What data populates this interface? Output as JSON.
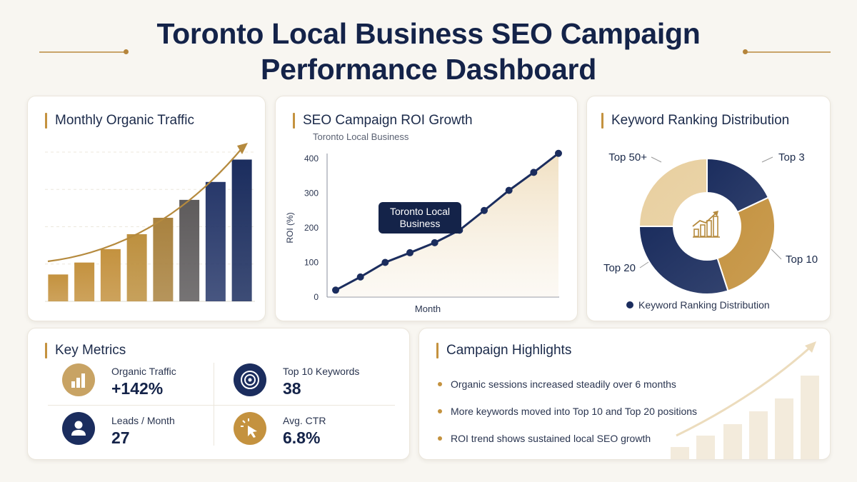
{
  "page": {
    "title_line1": "Toronto Local Business SEO Campaign",
    "title_line2": "Performance Dashboard"
  },
  "colors": {
    "navy": "#1b2d5e",
    "gold": "#c4923f",
    "gold_light": "#e8cf9f",
    "background": "#f8f6f1"
  },
  "traffic_card": {
    "title": "Monthly Organic Traffic"
  },
  "roi_card": {
    "title": "SEO Campaign ROI Growth",
    "subtitle": "Toronto Local Business",
    "callout": "Toronto Local Business"
  },
  "keyword_card": {
    "title": "Keyword Ranking Distribution",
    "legend": "Keyword Ranking Distribution",
    "center_icon": "bar-growth-icon"
  },
  "metrics_card": {
    "title": "Key Metrics",
    "items": [
      {
        "label": "Organic Traffic",
        "value": "+142%",
        "icon": "bar-chart-icon"
      },
      {
        "label": "Top 10 Keywords",
        "value": "38",
        "icon": "target-icon"
      },
      {
        "label": "Leads / Month",
        "value": "27",
        "icon": "user-icon"
      },
      {
        "label": "Avg. CTR",
        "value": "6.8%",
        "icon": "cursor-click-icon"
      }
    ]
  },
  "highlights_card": {
    "title": "Campaign Highlights",
    "items": [
      "Organic sessions increased steadily over 6 months",
      "More keywords moved into Top 10 and Top 20 positions",
      "ROI trend shows sustained local SEO growth"
    ]
  },
  "chart_data": [
    {
      "type": "bar",
      "title": "Monthly Organic Traffic",
      "categories": [
        "",
        "",
        "",
        "",
        "",
        "",
        "",
        ""
      ],
      "values": [
        18,
        26,
        35,
        45,
        56,
        68,
        80,
        95
      ],
      "ylim": [
        0,
        100
      ],
      "grid": true,
      "trend_arrow": true
    },
    {
      "type": "line",
      "title": "SEO Campaign ROI Growth",
      "subtitle": "Toronto Local Business",
      "xlabel": "Month",
      "ylabel": "ROI (%)",
      "ylim": [
        0,
        400
      ],
      "yticks": [
        "0",
        "100",
        "200",
        "300",
        "400"
      ],
      "x": [
        1,
        2,
        3,
        4,
        5,
        6,
        7,
        8,
        9,
        10
      ],
      "values": [
        20,
        58,
        100,
        128,
        157,
        193,
        250,
        308,
        360,
        415
      ],
      "area_fill": true
    },
    {
      "type": "pie",
      "title": "Keyword Ranking Distribution",
      "donut": true,
      "labels": [
        "Top 3",
        "Top 10",
        "Top 20",
        "Top 50+"
      ],
      "values": [
        18,
        27,
        30,
        25
      ],
      "colors": [
        "#1b2d5e",
        "#c4923f",
        "#1b2d5e",
        "#e8cf9f"
      ],
      "legend": "Keyword Ranking Distribution",
      "legend_position": "bottom"
    }
  ]
}
